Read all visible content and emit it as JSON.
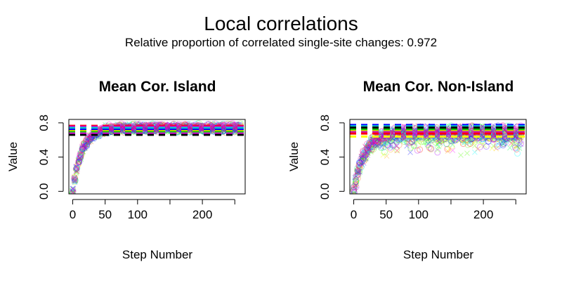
{
  "figure": {
    "title": "Local correlations",
    "subtitle": "Relative proportion of correlated single-site changes: 0.972"
  },
  "colors": {
    "series_palette": [
      "#ff0000",
      "#ff5500",
      "#ffaa00",
      "#ffff00",
      "#aaff00",
      "#55ff00",
      "#00ff00",
      "#00ff55",
      "#00ffaa",
      "#00ffff",
      "#00aaff",
      "#0055ff",
      "#0000ff",
      "#5500ff",
      "#aa00ff",
      "#ff00ff",
      "#ff00aa",
      "#ff0055"
    ],
    "hline_colors": [
      "#ff0000",
      "#00cc00",
      "#0000ff",
      "#00cccc",
      "#cc00cc",
      "#cccc00",
      "#000000",
      "#ff00ff"
    ]
  },
  "chart_data": [
    {
      "type": "scatter",
      "title": "Mean Cor. Island",
      "xlabel": "Step Number",
      "ylabel": "Value",
      "xlim": [
        -6,
        266
      ],
      "ylim": [
        -0.03,
        0.84
      ],
      "xticks": [
        0,
        50,
        100,
        200
      ],
      "xtick_marks": [
        0,
        50,
        100,
        150,
        200,
        250
      ],
      "yticks": [
        0.0,
        0.4,
        0.8
      ],
      "ytick_labels": [
        "0.0",
        "0.4",
        "0.8"
      ],
      "legend": "none",
      "marker": "open circles and crosses, semi-transparent",
      "n_steps": 260,
      "curve": {
        "start": 0.0,
        "plateau": 0.74,
        "rate": 0.07,
        "spread": 0.05
      },
      "reference_lines": [
        {
          "y": 0.765,
          "color": "#ff0000"
        },
        {
          "y": 0.755,
          "color": "#cc00cc"
        },
        {
          "y": 0.74,
          "color": "#00cccc"
        },
        {
          "y": 0.72,
          "color": "#0000ff"
        },
        {
          "y": 0.705,
          "color": "#cccc00"
        },
        {
          "y": 0.69,
          "color": "#00cc00"
        },
        {
          "y": 0.675,
          "color": "#ff00ff"
        },
        {
          "y": 0.66,
          "color": "#000000"
        }
      ]
    },
    {
      "type": "scatter",
      "title": "Mean Cor. Non-Island",
      "xlabel": "Step Number",
      "ylabel": "Value",
      "xlim": [
        -6,
        266
      ],
      "ylim": [
        -0.03,
        0.84
      ],
      "xticks": [
        0,
        50,
        100,
        200
      ],
      "xtick_marks": [
        0,
        50,
        100,
        150,
        200,
        250
      ],
      "yticks": [
        0.0,
        0.4,
        0.8
      ],
      "ytick_labels": [
        "0.0",
        "0.4",
        "0.8"
      ],
      "legend": "none",
      "marker": "open circles and crosses, semi-transparent",
      "n_steps": 260,
      "curve": {
        "start": 0.0,
        "plateau": 0.68,
        "rate": 0.06,
        "spread": 0.09
      },
      "reference_lines": [
        {
          "y": 0.775,
          "color": "#0000ff"
        },
        {
          "y": 0.76,
          "color": "#00cccc"
        },
        {
          "y": 0.745,
          "color": "#000000"
        },
        {
          "y": 0.72,
          "color": "#00cc00"
        },
        {
          "y": 0.705,
          "color": "#cccc00"
        },
        {
          "y": 0.69,
          "color": "#cc00cc"
        },
        {
          "y": 0.675,
          "color": "#ff0000"
        },
        {
          "y": 0.64,
          "color": "#ffff00"
        }
      ]
    }
  ]
}
